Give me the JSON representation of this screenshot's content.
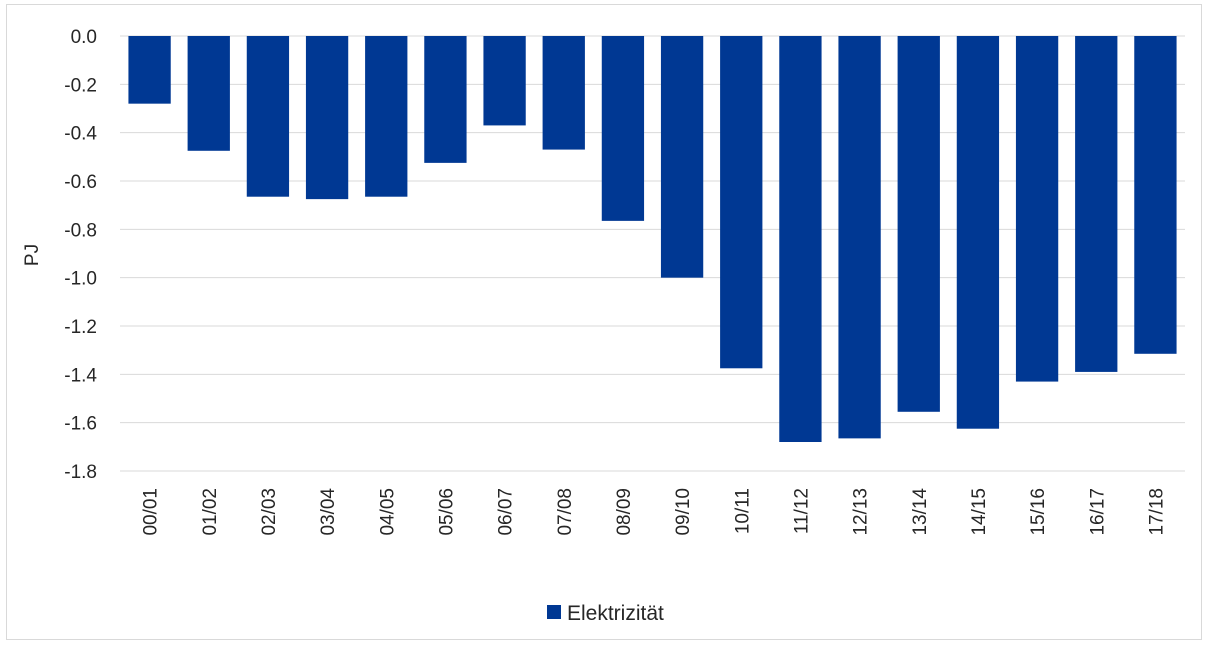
{
  "chart_data": {
    "type": "bar",
    "ylabel": "PJ",
    "xlabel": "",
    "ylim": [
      -1.8,
      0.0
    ],
    "yticks": [
      0.0,
      -0.2,
      -0.4,
      -0.6,
      -0.8,
      -1.0,
      -1.2,
      -1.4,
      -1.6,
      -1.8
    ],
    "ytick_labels": [
      "0.0",
      "-0.2",
      "-0.4",
      "-0.6",
      "-0.8",
      "-1.0",
      "-1.2",
      "-1.4",
      "-1.6",
      "-1.8"
    ],
    "grid": true,
    "legend_position": "bottom-center",
    "categories": [
      "00/01",
      "01/02",
      "02/03",
      "03/04",
      "04/05",
      "05/06",
      "06/07",
      "07/08",
      "08/09",
      "09/10",
      "10/11",
      "11/12",
      "12/13",
      "13/14",
      "14/15",
      "15/16",
      "16/17",
      "17/18"
    ],
    "series": [
      {
        "name": "Elektrizität",
        "color": "#003893",
        "values": [
          -0.28,
          -0.475,
          -0.665,
          -0.675,
          -0.665,
          -0.525,
          -0.37,
          -0.47,
          -0.765,
          -1.0,
          -1.375,
          -1.68,
          -1.665,
          -1.555,
          -1.625,
          -1.43,
          -1.39,
          -1.315
        ]
      }
    ]
  }
}
